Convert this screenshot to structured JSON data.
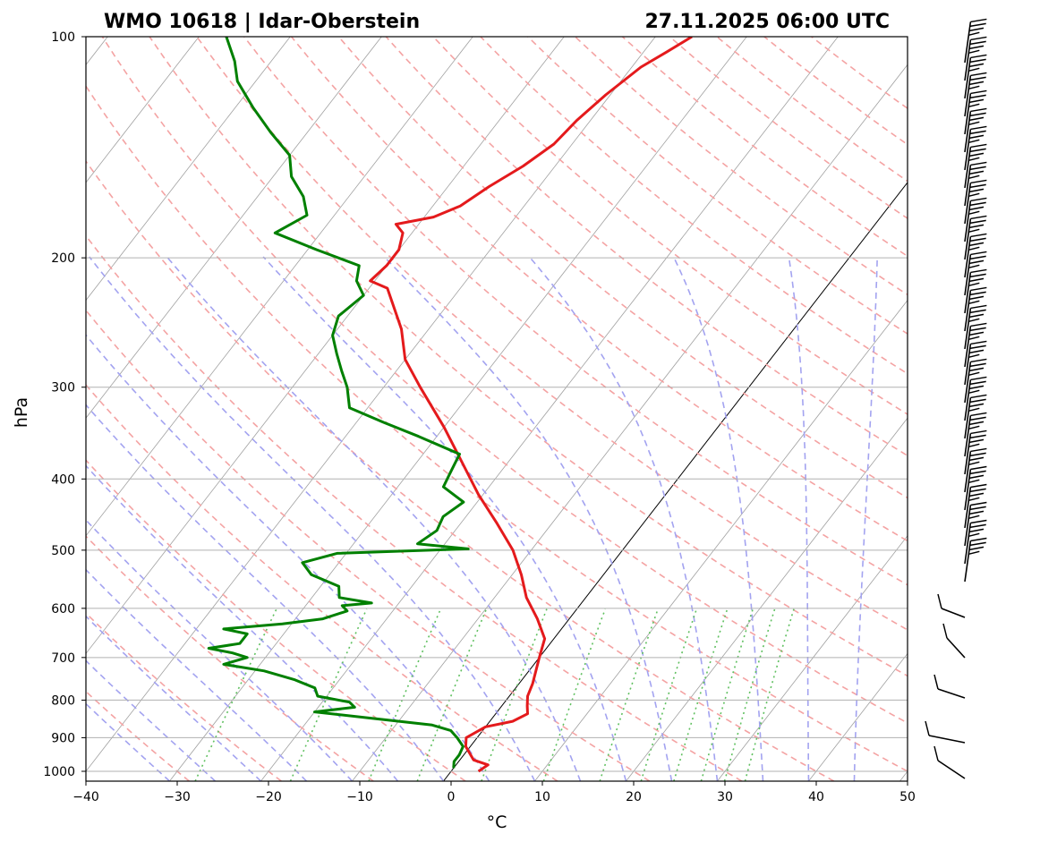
{
  "header": {
    "station": "WMO 10618 | Idar-Oberstein",
    "datetime": "27.11.2025 06:00 UTC"
  },
  "chart_data": {
    "type": "line",
    "subtype": "skew-T log-P diagram",
    "xlabel": "°C",
    "ylabel": "hPa",
    "xlim": [
      -40,
      50
    ],
    "ylim": [
      1000,
      100
    ],
    "y_scale": "log",
    "x_ticks": [
      -40,
      -30,
      -20,
      -10,
      0,
      10,
      20,
      30,
      40,
      50
    ],
    "x_tick_labels": [
      "−40",
      "−30",
      "−20",
      "−10",
      "0",
      "10",
      "20",
      "30",
      "40",
      "50"
    ],
    "y_ticks": [
      1000,
      900,
      800,
      700,
      600,
      500,
      400,
      300,
      200,
      100
    ],
    "y_tick_labels": [
      "1000",
      "900",
      "800",
      "700",
      "600",
      "500",
      "400",
      "300",
      "200",
      "100"
    ],
    "grid": true,
    "colors": {
      "temperature": "#e41a1c",
      "dewpoint": "#008000",
      "dry_adiabats": "#f4a3a3",
      "moist_adiabats": "#a3a3f0",
      "mixing_ratio": "#60c060",
      "isotherms": "#a0a0a0",
      "zero_isotherm": "#000000"
    },
    "series": [
      {
        "role": "temperature",
        "points": [
          [
            1000,
            3
          ],
          [
            980,
            3.5
          ],
          [
            965,
            1.5
          ],
          [
            925,
            -0.5
          ],
          [
            900,
            -1.2
          ],
          [
            870,
            0
          ],
          [
            855,
            2.5
          ],
          [
            835,
            3.5
          ],
          [
            815,
            2.8
          ],
          [
            790,
            2
          ],
          [
            760,
            1.5
          ],
          [
            700,
            0
          ],
          [
            660,
            -1
          ],
          [
            620,
            -3.5
          ],
          [
            580,
            -6.5
          ],
          [
            540,
            -9
          ],
          [
            500,
            -12
          ],
          [
            460,
            -16
          ],
          [
            420,
            -20.5
          ],
          [
            380,
            -25
          ],
          [
            340,
            -30
          ],
          [
            300,
            -36
          ],
          [
            275,
            -40
          ],
          [
            250,
            -43
          ],
          [
            220,
            -48
          ],
          [
            215,
            -50.5
          ],
          [
            205,
            -50
          ],
          [
            195,
            -50
          ],
          [
            185,
            -51
          ],
          [
            180,
            -52.5
          ],
          [
            176,
            -49
          ],
          [
            170,
            -47
          ],
          [
            160,
            -45.5
          ],
          [
            150,
            -43.5
          ],
          [
            140,
            -42
          ],
          [
            130,
            -41.5
          ],
          [
            120,
            -40.5
          ],
          [
            110,
            -39
          ],
          [
            105,
            -37.5
          ],
          [
            100,
            -36
          ]
        ]
      },
      {
        "role": "dewpoint",
        "points": [
          [
            990,
            0
          ],
          [
            970,
            -0.5
          ],
          [
            950,
            -0.5
          ],
          [
            925,
            -0.8
          ],
          [
            900,
            -2.2
          ],
          [
            880,
            -3.5
          ],
          [
            865,
            -6
          ],
          [
            845,
            -14
          ],
          [
            830,
            -20
          ],
          [
            818,
            -16
          ],
          [
            805,
            -17
          ],
          [
            790,
            -21
          ],
          [
            770,
            -22
          ],
          [
            750,
            -25
          ],
          [
            730,
            -29
          ],
          [
            715,
            -34
          ],
          [
            700,
            -32
          ],
          [
            690,
            -34
          ],
          [
            680,
            -37
          ],
          [
            670,
            -34
          ],
          [
            650,
            -34
          ],
          [
            640,
            -37
          ],
          [
            630,
            -31
          ],
          [
            620,
            -27
          ],
          [
            605,
            -25
          ],
          [
            595,
            -26
          ],
          [
            590,
            -23
          ],
          [
            580,
            -27
          ],
          [
            560,
            -28
          ],
          [
            540,
            -32
          ],
          [
            520,
            -34
          ],
          [
            505,
            -31
          ],
          [
            498,
            -17
          ],
          [
            490,
            -23
          ],
          [
            470,
            -22
          ],
          [
            450,
            -22.5
          ],
          [
            430,
            -21.5
          ],
          [
            410,
            -25
          ],
          [
            390,
            -25.5
          ],
          [
            370,
            -26
          ],
          [
            350,
            -32
          ],
          [
            335,
            -37
          ],
          [
            320,
            -42
          ],
          [
            300,
            -44
          ],
          [
            285,
            -46
          ],
          [
            270,
            -48
          ],
          [
            255,
            -50
          ],
          [
            240,
            -51
          ],
          [
            225,
            -50
          ],
          [
            215,
            -52
          ],
          [
            205,
            -53
          ],
          [
            195,
            -59
          ],
          [
            185,
            -65
          ],
          [
            175,
            -63
          ],
          [
            165,
            -65
          ],
          [
            155,
            -68
          ],
          [
            145,
            -70
          ],
          [
            135,
            -74
          ],
          [
            125,
            -78
          ],
          [
            115,
            -82
          ],
          [
            108,
            -84
          ],
          [
            100,
            -87
          ]
        ]
      }
    ]
  }
}
